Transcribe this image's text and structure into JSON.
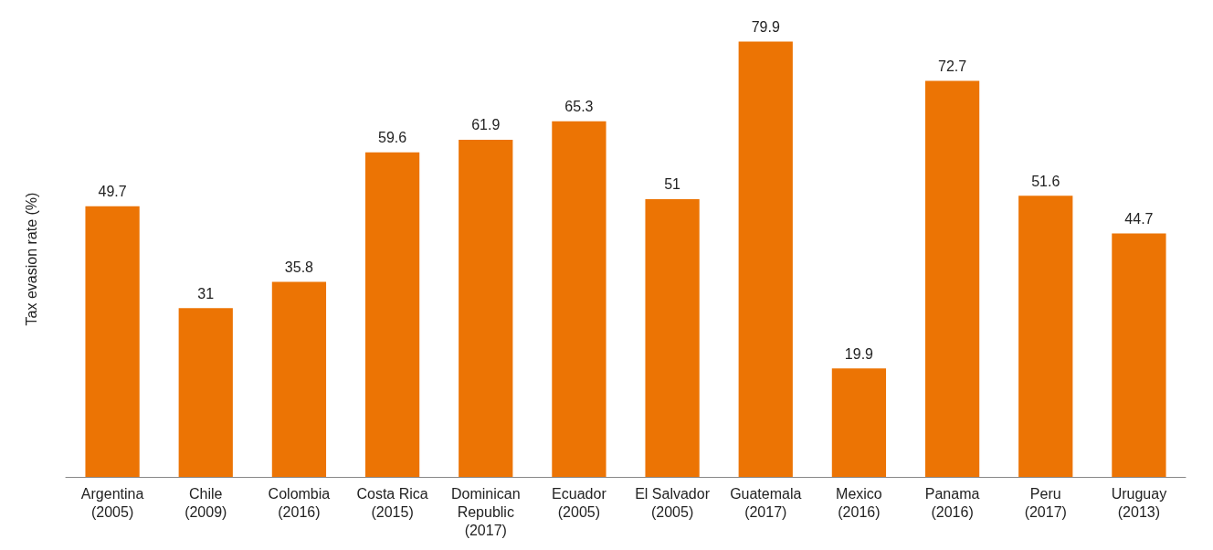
{
  "chart_data": {
    "type": "bar",
    "ylabel": "Tax evasion rate (%)",
    "categories": [
      "Argentina\n(2005)",
      "Chile\n(2009)",
      "Colombia\n(2016)",
      "Costa Rica\n(2015)",
      "Dominican\nRepublic\n(2017)",
      "Ecuador\n(2005)",
      "El Salvador\n(2005)",
      "Guatemala\n(2017)",
      "Mexico\n(2016)",
      "Panama\n(2016)",
      "Peru\n(2017)",
      "Uruguay\n(2013)"
    ],
    "values": [
      49.7,
      31,
      35.8,
      59.6,
      61.9,
      65.3,
      51,
      79.9,
      19.9,
      72.7,
      51.6,
      44.7
    ],
    "color": "#ec7404",
    "data_labels": true
  }
}
